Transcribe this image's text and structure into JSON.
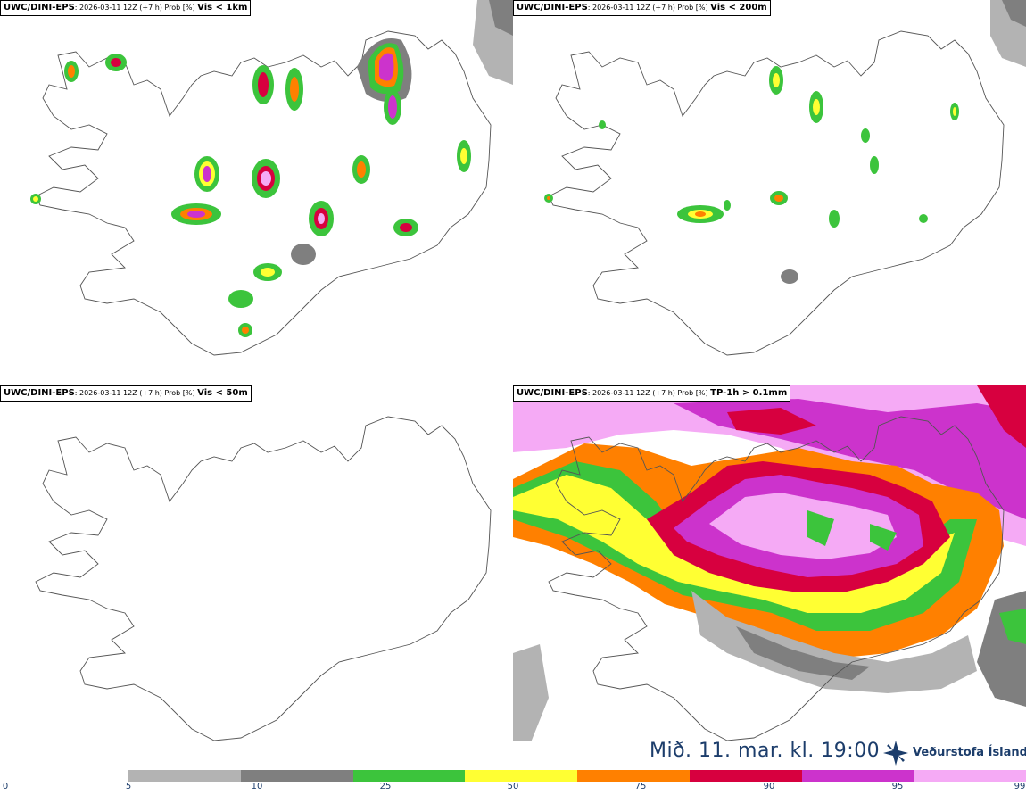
{
  "panels": [
    {
      "id": "vis1km",
      "model": "UWC/DINI-EPS",
      "meta": ": 2026-03-11 12Z (+7 h) Prob [%] ",
      "variable": "Vis < 1km"
    },
    {
      "id": "vis200m",
      "model": "UWC/DINI-EPS",
      "meta": ": 2026-03-11 12Z (+7 h) Prob [%] ",
      "variable": "Vis < 200m"
    },
    {
      "id": "vis50m",
      "model": "UWC/DINI-EPS",
      "meta": ": 2026-03-11 12Z (+7 h) Prob [%] ",
      "variable": "Vis < 50m"
    },
    {
      "id": "tp1h",
      "model": "UWC/DINI-EPS",
      "meta": ": 2026-03-11 12Z (+7 h) Prob [%] ",
      "variable": "TP-1h > 0.1mm"
    }
  ],
  "valid_time": "Mið. 11. mar. kl. 19:00",
  "logo_text": "Veðurstofa Íslands",
  "colorbar": {
    "ticks": [
      "0",
      "5",
      "10",
      "25",
      "50",
      "75",
      "90",
      "95",
      "99"
    ],
    "colors": [
      "#b3b3b3",
      "#7f7f7f",
      "#3cc43c",
      "#ffff33",
      "#ff8000",
      "#d7003f",
      "#cc33cc",
      "#f5aaf5"
    ]
  },
  "legend_colors": {
    "light_gray": "#b3b3b3",
    "dark_gray": "#7f7f7f",
    "green": "#3cc43c",
    "yellow": "#ffff33",
    "orange": "#ff8000",
    "red": "#d7003f",
    "magenta": "#cc33cc",
    "pink": "#f5aaf5"
  }
}
